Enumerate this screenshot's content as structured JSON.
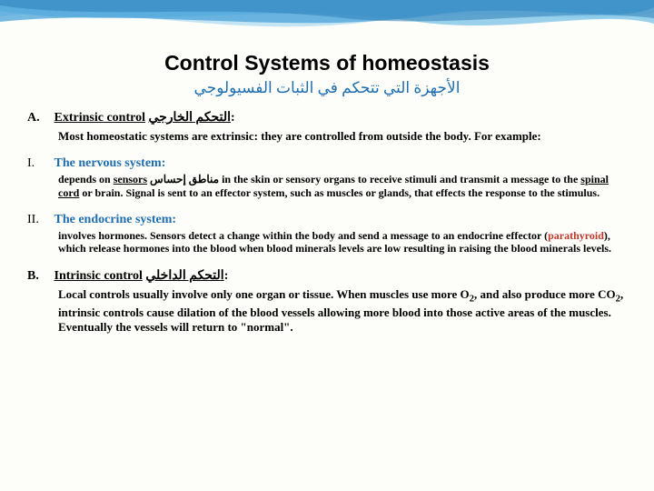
{
  "title": {
    "text": "Control Systems of homeostasis",
    "fontsize": 23,
    "color": "#000000"
  },
  "subtitle": {
    "text": "الأجهزة التي تتحكم في الثبات الفسيولوجي",
    "fontsize": 17,
    "color": "#1f6fb0"
  },
  "sections": [
    {
      "marker": "A.",
      "title_en": "Extrinsic control",
      "title_ar": "التحكم الخارجي",
      "colon": ":",
      "body": "Most homeostatic systems are extrinsic: they are controlled from outside the body. For example:",
      "color": "#000000",
      "fontsize": 14
    },
    {
      "marker": "B.",
      "title_en": "Intrinsic control",
      "title_ar": "التحكم الداخلي",
      "colon": ":",
      "body_html": "Local controls usually involve only one organ or tissue. When muscles use more O<sub>2</sub>, and also produce more CO<sub>2</sub>, intrinsic controls cause dilation of the blood vessels allowing more blood into those active areas of the muscles. Eventually the vessels will return to \"normal\".",
      "color": "#000000",
      "fontsize": 14
    }
  ],
  "subsections": [
    {
      "marker": "I.",
      "title": "The nervous system:",
      "title_color": "#1f6fb0",
      "body_pre": "depends on ",
      "sensors_word": "sensors",
      "sensors_ar": "مناطق إحساس",
      "body_mid": " in the skin or sensory organs to receive stimuli and transmit a message to the ",
      "spinal_word": "spinal cord",
      "body_post": " or brain. Signal is sent to an effector system, such as muscles or glands, that effects the response to the stimulus.",
      "fontsize": 12
    },
    {
      "marker": "II.",
      "title": "The endocrine system:",
      "title_color": "#1f6fb0",
      "body_pre": "involves hormones. Sensors detect a change within the body and send a message to an endocrine effector (",
      "para_word": "parathyroid",
      "para_color": "#c0392b",
      "body_post": "), which release hormones into the blood when blood minerals levels are low resulting in raising the blood minerals levels.",
      "fontsize": 12
    }
  ],
  "decoration": {
    "wave_colors": [
      "#4aa3d8",
      "#7fc4e8",
      "#b8dff2",
      "#2e7fb8"
    ]
  }
}
